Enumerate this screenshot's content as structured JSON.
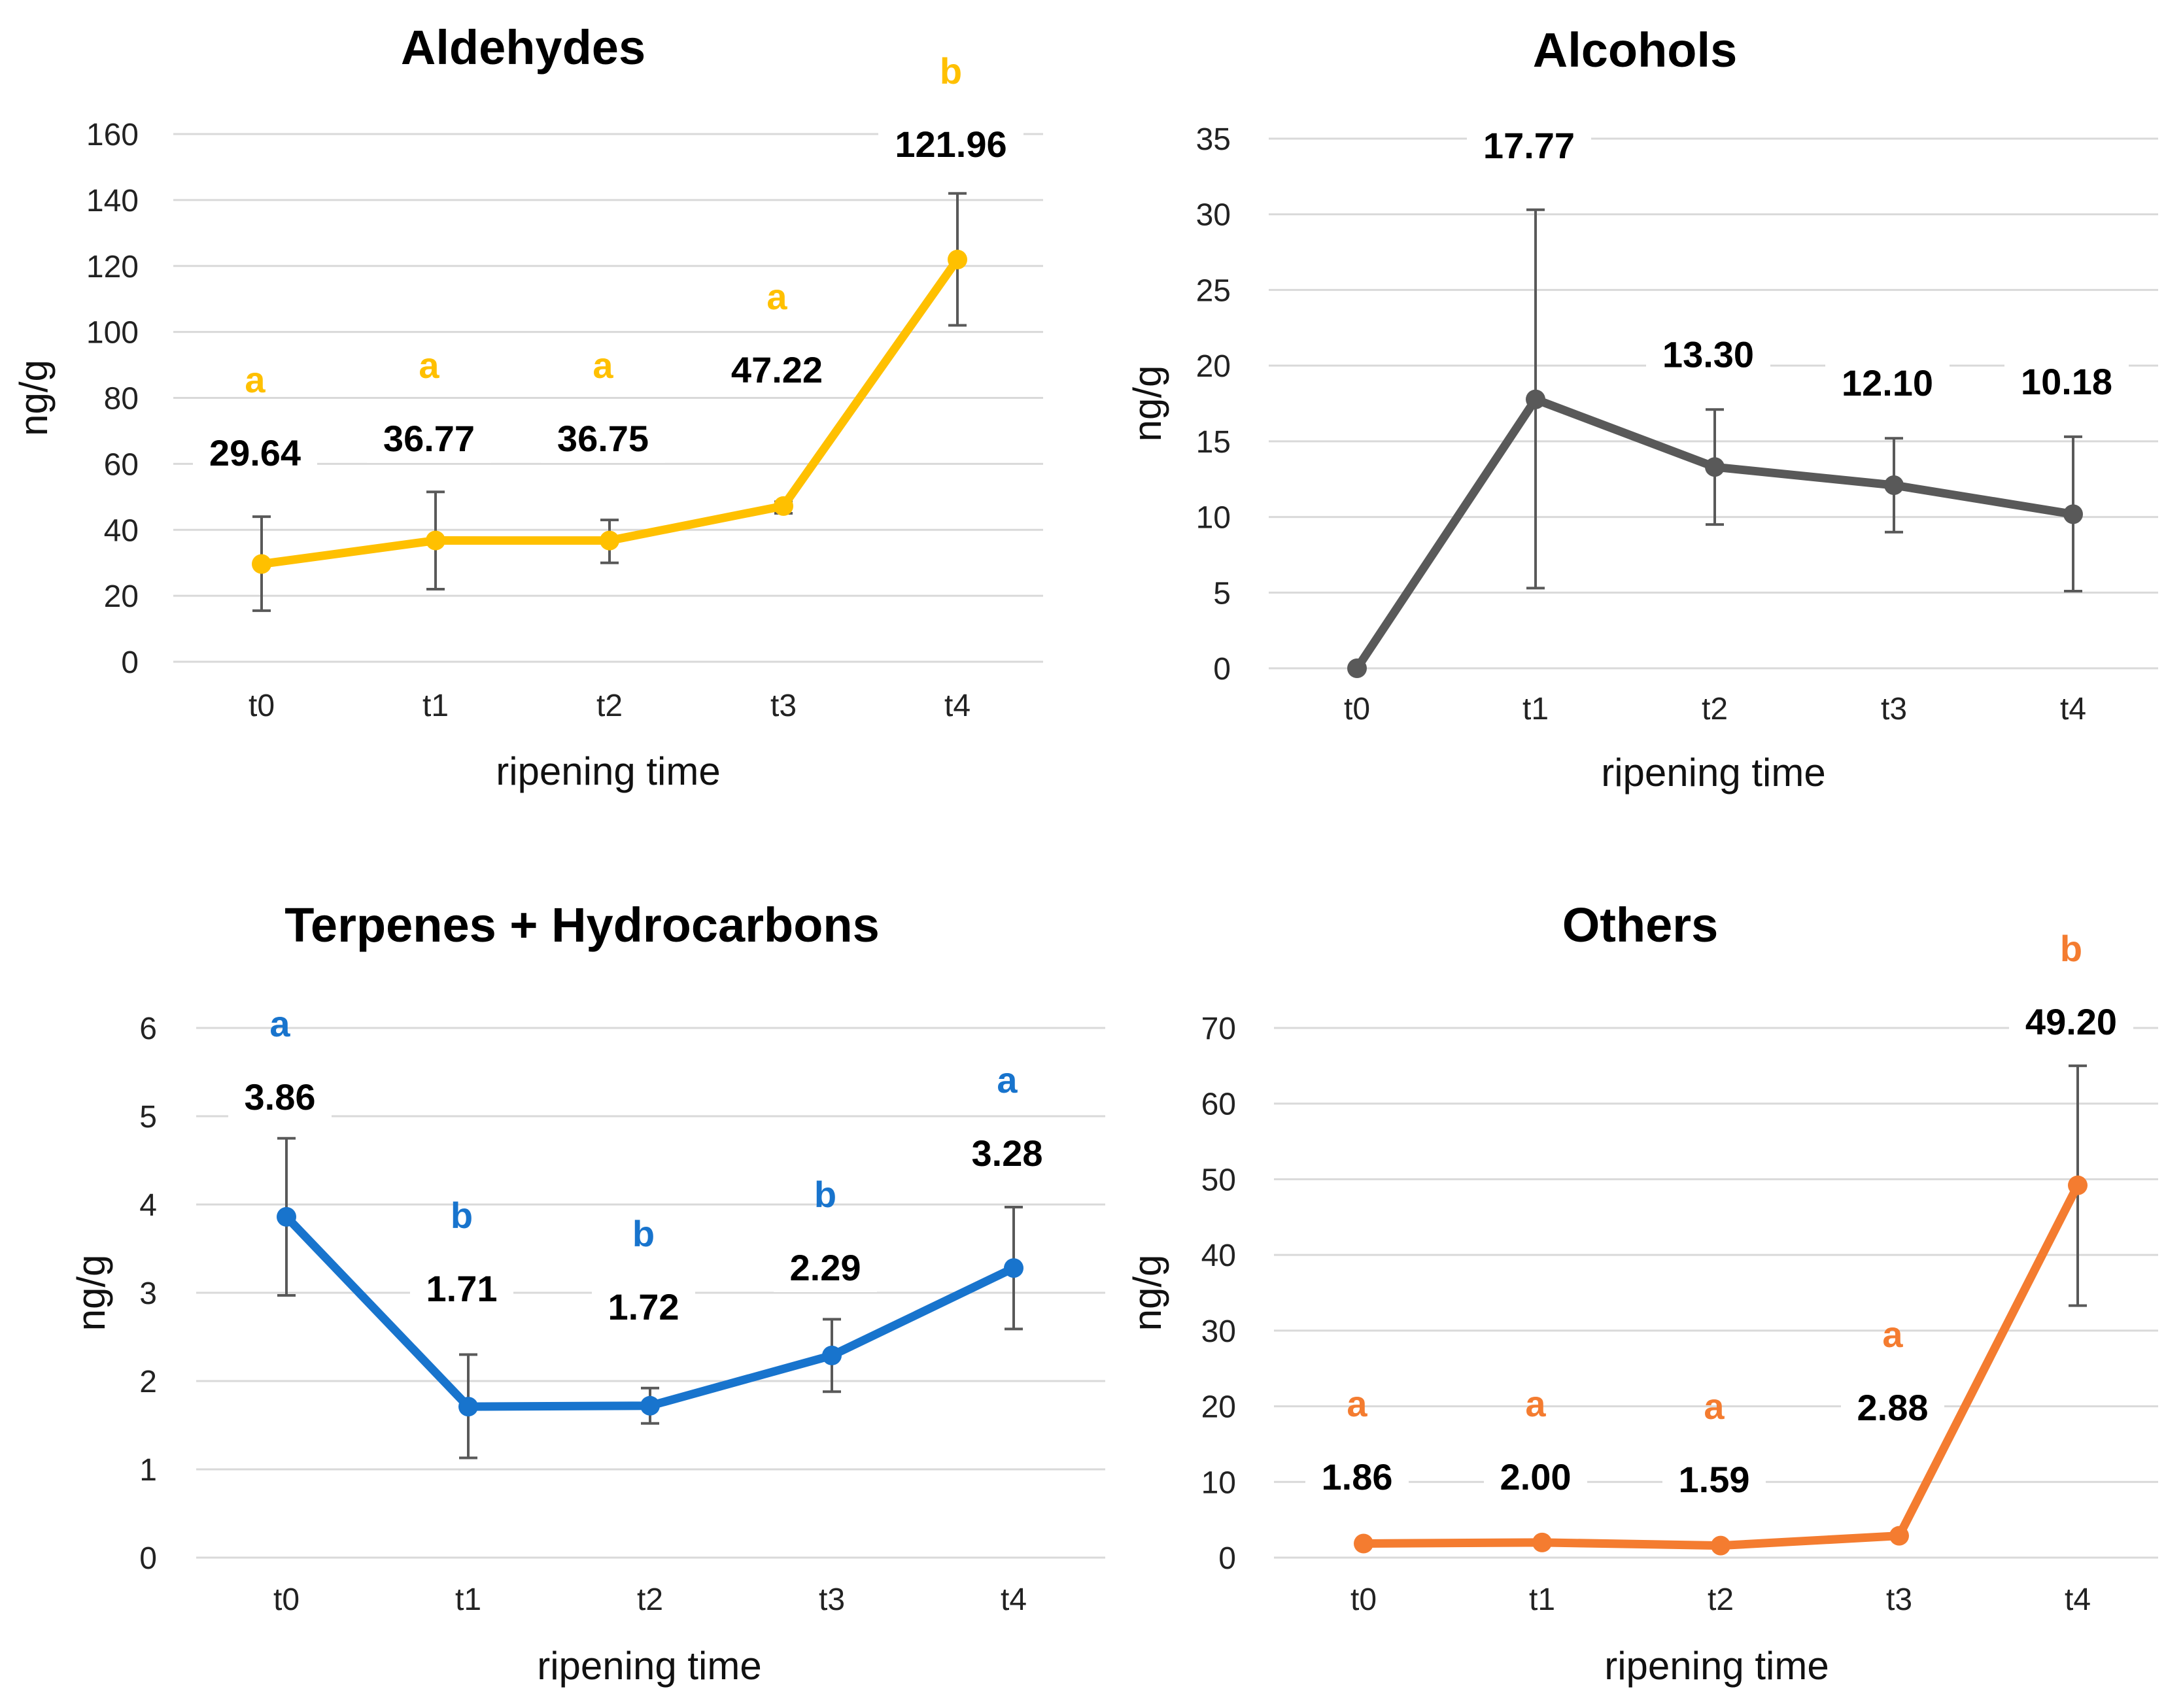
{
  "chart_data": [
    {
      "type": "line",
      "title": "Aldehydes",
      "xlabel": "ripening time",
      "ylabel": "ng/g",
      "categories": [
        "t0",
        "t1",
        "t2",
        "t3",
        "t4"
      ],
      "values": [
        29.64,
        36.77,
        36.75,
        47.22,
        121.96
      ],
      "value_labels": [
        "29.64",
        "36.77",
        "36.75",
        "47.22",
        "121.96"
      ],
      "error_low": [
        15.5,
        22,
        30,
        45,
        102
      ],
      "error_high": [
        44,
        51.5,
        43,
        48.5,
        142
      ],
      "significance": [
        "a",
        "a",
        "a",
        "a",
        "b"
      ],
      "ylim": [
        0,
        160
      ],
      "yticks": [
        0,
        20,
        40,
        60,
        80,
        100,
        120,
        140,
        160
      ],
      "color": "#FFC000",
      "grid": true
    },
    {
      "type": "line",
      "title": "Alcohols",
      "xlabel": "ripening time",
      "ylabel": "ng/g",
      "categories": [
        "t0",
        "t1",
        "t2",
        "t3",
        "t4"
      ],
      "values": [
        0,
        17.77,
        13.3,
        12.1,
        10.18
      ],
      "value_labels": [
        "",
        "17.77",
        "13.30",
        "12.10",
        "10.18"
      ],
      "error_low": [
        0,
        5.3,
        9.5,
        9,
        5.1
      ],
      "error_high": [
        0,
        30.3,
        17.1,
        15.2,
        15.3
      ],
      "significance": [
        "",
        "",
        "",
        "",
        ""
      ],
      "ylim": [
        0,
        35
      ],
      "yticks": [
        0,
        5,
        10,
        15,
        20,
        25,
        30,
        35
      ],
      "color": "#595959",
      "grid": true
    },
    {
      "type": "line",
      "title": "Terpenes + Hydrocarbons",
      "xlabel": "ripening time",
      "ylabel": "ng/g",
      "categories": [
        "t0",
        "t1",
        "t2",
        "t3",
        "t4"
      ],
      "values": [
        3.86,
        1.71,
        1.72,
        2.29,
        3.28
      ],
      "value_labels": [
        "3.86",
        "1.71",
        "1.72",
        "2.29",
        "3.28"
      ],
      "error_low": [
        2.97,
        1.13,
        1.52,
        1.88,
        2.59
      ],
      "error_high": [
        4.75,
        2.3,
        1.92,
        2.7,
        3.97
      ],
      "significance": [
        "a",
        "b",
        "b",
        "b",
        "a"
      ],
      "ylim": [
        0,
        6
      ],
      "yticks": [
        0,
        1,
        2,
        3,
        4,
        5,
        6
      ],
      "color": "#1874CD",
      "grid": true
    },
    {
      "type": "line",
      "title": "Others",
      "xlabel": "ripening time",
      "ylabel": "ng/g",
      "categories": [
        "t0",
        "t1",
        "t2",
        "t3",
        "t4"
      ],
      "values": [
        1.86,
        2.0,
        1.59,
        2.88,
        49.2
      ],
      "value_labels": [
        "1.86",
        "2.00",
        "1.59",
        "2.88",
        "49.20"
      ],
      "error_low": [
        1.86,
        2.0,
        1.59,
        2.88,
        33.3
      ],
      "error_high": [
        1.86,
        2.0,
        1.59,
        2.88,
        65
      ],
      "significance": [
        "a",
        "a",
        "a",
        "a",
        "b"
      ],
      "ylim": [
        0,
        70
      ],
      "yticks": [
        0,
        10,
        20,
        30,
        40,
        50,
        60,
        70
      ],
      "color": "#F47C30",
      "grid": true
    }
  ]
}
